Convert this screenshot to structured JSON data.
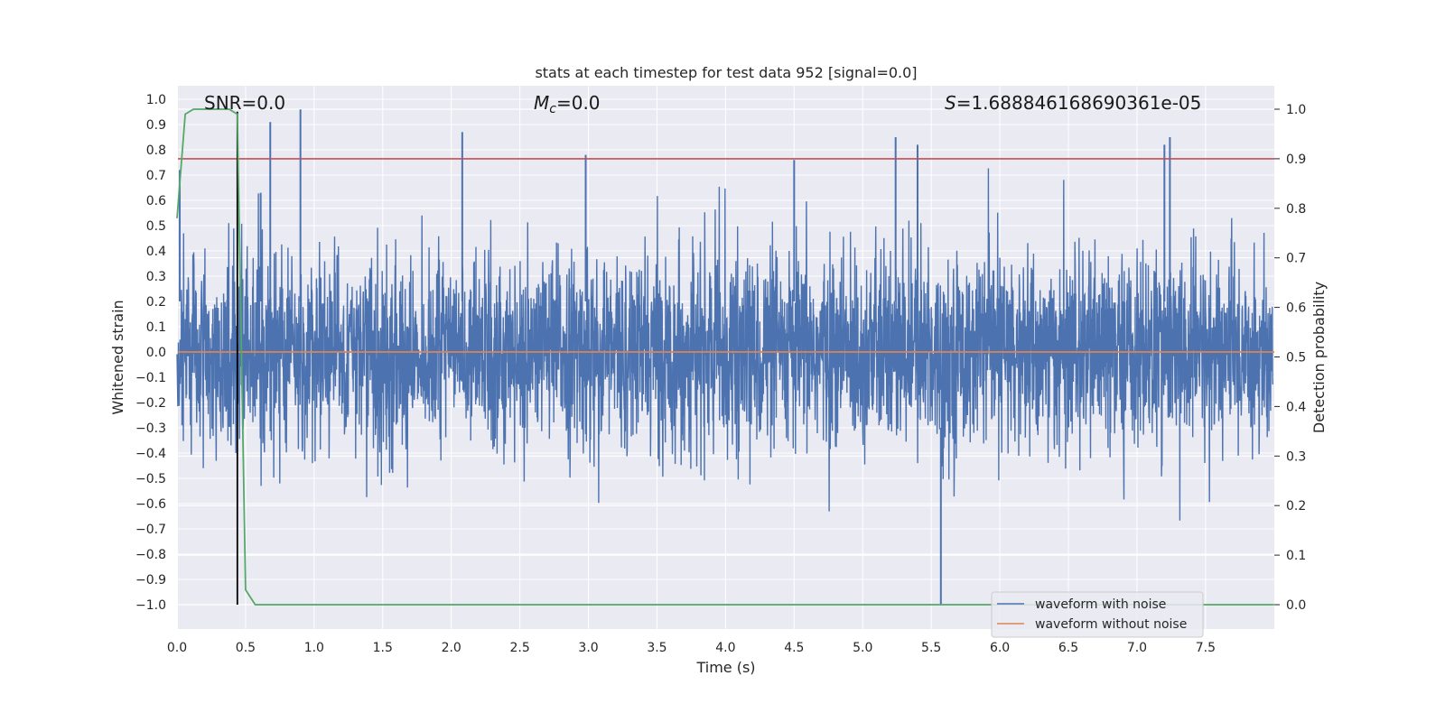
{
  "chart_data": {
    "type": "line",
    "title": "stats at each timestep for test data 952 [signal=0.0]",
    "xlabel": "Time (s)",
    "ylabel_left": "Whitened strain",
    "ylabel_right": "Detection probability",
    "xlim": [
      0.0,
      8.0
    ],
    "ylim_left": [
      -1.1,
      1.05
    ],
    "ylim_right": [
      -0.05,
      1.04
    ],
    "x_ticks": [
      "0.0",
      "0.5",
      "1.0",
      "1.5",
      "2.0",
      "2.5",
      "3.0",
      "3.5",
      "4.0",
      "4.5",
      "5.0",
      "5.5",
      "6.0",
      "6.5",
      "7.0",
      "7.5"
    ],
    "y_ticks_left": [
      "1.0",
      "0.9",
      "0.8",
      "0.7",
      "0.6",
      "0.5",
      "0.4",
      "0.3",
      "0.2",
      "0.1",
      "0.0",
      "−0.1",
      "−0.2",
      "−0.3",
      "−0.4",
      "−0.5",
      "−0.6",
      "−0.7",
      "−0.8",
      "−0.9",
      "−1.0"
    ],
    "y_ticks_right": [
      "1.0",
      "0.9",
      "0.8",
      "0.7",
      "0.6",
      "0.5",
      "0.4",
      "0.3",
      "0.2",
      "0.1",
      "0.0"
    ],
    "annotations": {
      "snr": "SNR=0.0",
      "mc_symbol": "M",
      "mc_sub": "c",
      "mc_value": "=0.0",
      "s_symbol": "S",
      "s_value": "=1.688846168690361e-05"
    },
    "threshold_probability": 0.9,
    "detection_marker_time": 0.44,
    "series": [
      {
        "name": "waveform with noise",
        "color": "#4c72b0",
        "description": "noisy whitened strain, approx. range -1.0 to 0.96",
        "peaks_top": [
          0.72,
          0.63,
          0.91,
          0.96,
          0.87,
          0.78,
          0.76,
          0.85,
          0.82,
          0.82,
          0.85
        ],
        "peaks_top_t": [
          0.02,
          0.61,
          0.68,
          0.9,
          2.08,
          2.98,
          4.5,
          5.24,
          5.4,
          7.2,
          7.24
        ]
      },
      {
        "name": "waveform without noise",
        "color": "#dd8452",
        "value": 0.0
      },
      {
        "name": "detection probability",
        "color": "#55a868",
        "axis": "right",
        "x": [
          0.0,
          0.06,
          0.12,
          0.2,
          0.3,
          0.38,
          0.44,
          0.5,
          0.57,
          8.0
        ],
        "y": [
          0.78,
          0.99,
          1.0,
          1.0,
          1.0,
          1.0,
          0.99,
          0.03,
          0.0,
          0.0
        ]
      },
      {
        "name": "threshold",
        "color": "#c44e52",
        "axis": "right",
        "value": 0.9
      }
    ],
    "legend": [
      "waveform with noise",
      "waveform without noise"
    ],
    "legend_position": "lower-right",
    "grid": true
  }
}
